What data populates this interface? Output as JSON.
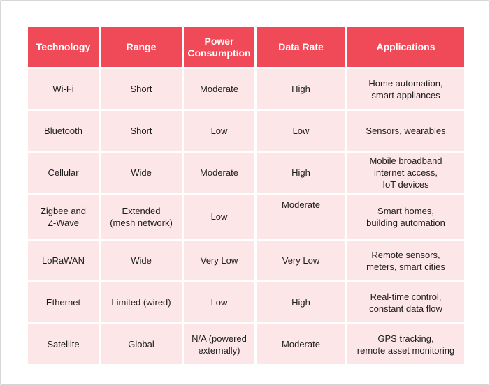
{
  "table": {
    "headers": [
      "Technology",
      "Range",
      "Power\nConsumption",
      "Data Rate",
      "Applications"
    ],
    "rows": [
      [
        "Wi-Fi",
        "Short",
        "Moderate",
        "High",
        "Home automation,\nsmart appliances"
      ],
      [
        "Bluetooth",
        "Short",
        "Low",
        "Low",
        "Sensors, wearables"
      ],
      [
        "Cellular",
        "Wide",
        "Moderate",
        "High",
        "Mobile broadband\ninternet access,\nIoT devices"
      ],
      [
        "Zigbee and\nZ-Wave",
        "Extended\n(mesh network)",
        "Low",
        "Moderate",
        "Smart homes,\nbuilding automation"
      ],
      [
        "LoRaWAN",
        "Wide",
        "Very Low",
        "Very Low",
        "Remote sensors,\nmeters, smart cities"
      ],
      [
        "Ethernet",
        "Limited (wired)",
        "Low",
        "High",
        "Real-time control,\nconstant data flow"
      ],
      [
        "Satellite",
        "Global",
        "N/A (powered\nexternally)",
        "Moderate",
        "GPS tracking,\nremote asset monitoring"
      ]
    ]
  },
  "colors": {
    "header_bg": "#f04a58",
    "cell_bg": "#fde6e8",
    "header_text": "#ffffff",
    "cell_text": "#1c1c1c"
  }
}
